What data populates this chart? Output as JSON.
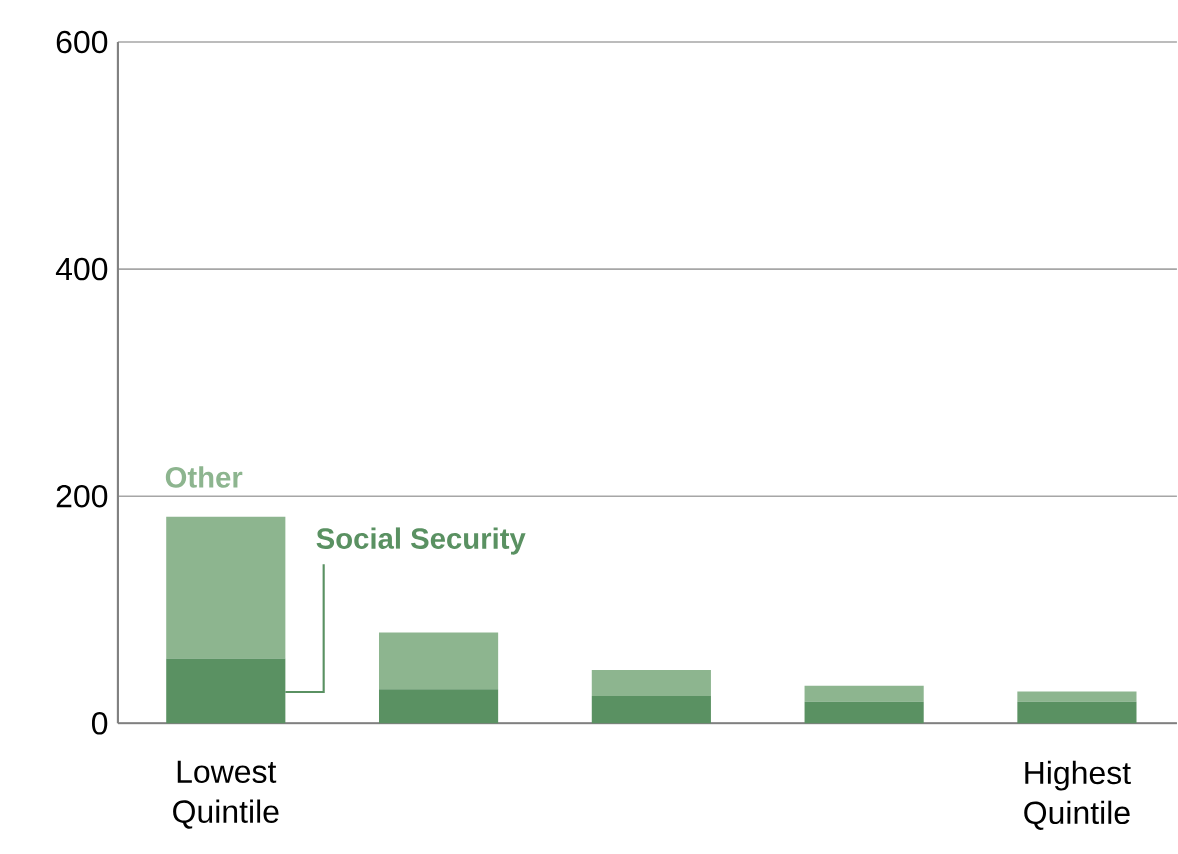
{
  "chart_data": {
    "type": "bar",
    "stacked": true,
    "categories": [
      "Lowest Quintile",
      null,
      null,
      null,
      "Highest Quintile"
    ],
    "series": [
      {
        "name": "Social Security",
        "color": "#5a9162",
        "values": [
          57,
          30,
          24,
          19,
          19
        ]
      },
      {
        "name": "Other",
        "color": "#8db58f",
        "values": [
          125,
          50,
          23,
          14,
          9
        ]
      }
    ],
    "ylim": [
      0,
      600
    ],
    "yticks": [
      0,
      200,
      400,
      600
    ],
    "grid": "y"
  }
}
